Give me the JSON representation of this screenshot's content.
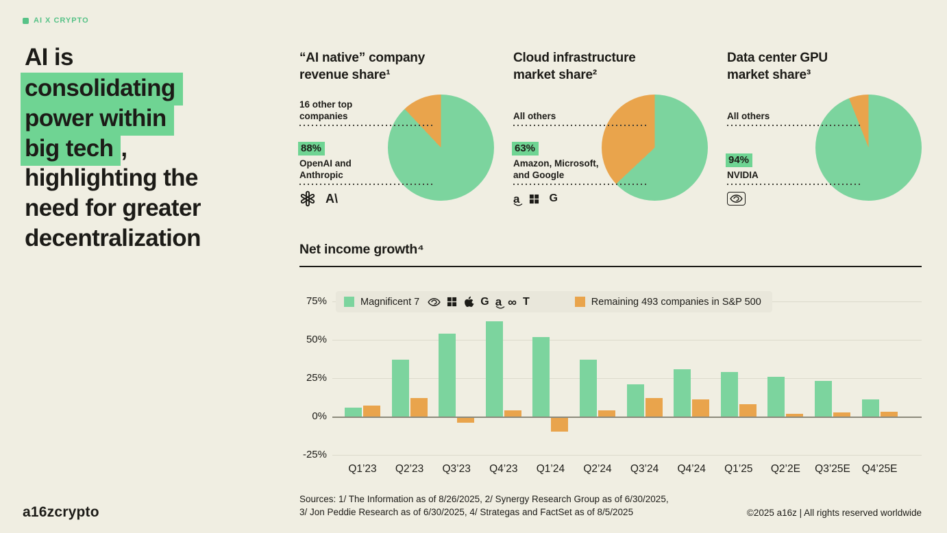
{
  "theme": {
    "background": "#F0EEE2",
    "text": "#1C1B17",
    "green": "#7CD49E",
    "highlight_green": "#6FD493",
    "badge_green": "#57C287",
    "orange": "#E9A44C",
    "legend_bg": "#E9E7DB",
    "gridline": "#DCDACC",
    "zero_line": "#8C8A7C"
  },
  "badge": {
    "label": "AI X CRYPTO"
  },
  "headline": {
    "lines": [
      {
        "text": "AI is",
        "highlight": false,
        "suffix": ""
      },
      {
        "text": "consolidating",
        "highlight": true,
        "suffix": ""
      },
      {
        "text": "power within",
        "highlight": true,
        "suffix": ""
      },
      {
        "text": "big tech",
        "highlight": true,
        "suffix": ","
      },
      {
        "text": "highlighting the",
        "highlight": false,
        "suffix": ""
      },
      {
        "text": "need for greater",
        "highlight": false,
        "suffix": ""
      },
      {
        "text": "decentralization",
        "highlight": false,
        "suffix": ""
      }
    ]
  },
  "pies": [
    {
      "title1": "“AI native” company",
      "title2": "revenue share¹",
      "top_lines": [
        "16 other top",
        "companies"
      ],
      "pct": "88%",
      "bottom_lines": [
        "OpenAI and",
        "Anthropic"
      ],
      "icons": [
        "openai",
        "anthropic"
      ]
    },
    {
      "title1": "Cloud infrastructure",
      "title2": "market share²",
      "top_lines": [
        "All others"
      ],
      "pct": "63%",
      "bottom_lines": [
        "Amazon, Microsoft,",
        "and Google"
      ],
      "icons": [
        "amazon",
        "microsoft",
        "google"
      ]
    },
    {
      "title1": "Data center GPU",
      "title2": "market share³",
      "top_lines": [
        "All others"
      ],
      "pct": "94%",
      "bottom_lines": [
        "NVIDIA"
      ],
      "icons": [
        "nvidia-badge"
      ]
    }
  ],
  "bar_section": {
    "title": "Net income growth⁴",
    "legend": [
      {
        "label": "Magnificent 7",
        "icons": [
          "nvidia",
          "microsoft",
          "apple",
          "google",
          "amazon",
          "meta",
          "tesla"
        ]
      },
      {
        "label": "Remaining 493 companies in S&P 500",
        "icons": []
      }
    ]
  },
  "footer": {
    "sources_line1": "Sources: 1/ The Information as of 8/26/2025, 2/ Synergy Research Group as of 6/30/2025,",
    "sources_line2": "3/ Jon Peddie Research as of 6/30/2025, 4/ Strategas and FactSet as of 8/5/2025",
    "wordmark": "a16zcrypto",
    "copyright": "©2025 a16z | All rights reserved worldwide"
  },
  "chart_data": [
    {
      "type": "pie",
      "title": "“AI native” company revenue share",
      "slices": [
        {
          "label": "OpenAI and Anthropic",
          "value": 88,
          "color": "#7CD49E"
        },
        {
          "label": "16 other top companies",
          "value": 12,
          "color": "#E9A44C"
        }
      ]
    },
    {
      "type": "pie",
      "title": "Cloud infrastructure market share",
      "slices": [
        {
          "label": "Amazon, Microsoft, and Google",
          "value": 63,
          "color": "#7CD49E"
        },
        {
          "label": "All others",
          "value": 37,
          "color": "#E9A44C"
        }
      ]
    },
    {
      "type": "pie",
      "title": "Data center GPU market share",
      "slices": [
        {
          "label": "NVIDIA",
          "value": 94,
          "color": "#7CD49E"
        },
        {
          "label": "All others",
          "value": 6,
          "color": "#E9A44C"
        }
      ]
    },
    {
      "type": "bar",
      "title": "Net income growth (YoY %)",
      "categories": [
        "Q1’23",
        "Q2’23",
        "Q3’23",
        "Q4’23",
        "Q1’24",
        "Q2’24",
        "Q3’24",
        "Q4’24",
        "Q1’25",
        "Q2’2E",
        "Q3’25E",
        "Q4’25E"
      ],
      "series": [
        {
          "name": "Magnificent 7",
          "color": "#7CD49E",
          "values": [
            6,
            37,
            54,
            62,
            52,
            37,
            21,
            31,
            29,
            26,
            23,
            11
          ]
        },
        {
          "name": "Remaining 493 companies in S&P 500",
          "color": "#E9A44C",
          "values": [
            7,
            12,
            -3,
            4,
            -9,
            4,
            12,
            11,
            8,
            2,
            2.5,
            3
          ]
        }
      ],
      "ylim": [
        -25,
        75
      ],
      "yticks": [
        75,
        50,
        25,
        0,
        -25
      ],
      "ytick_labels": [
        "75%",
        "50%",
        "25%",
        "0%",
        "-25%"
      ],
      "grid": true,
      "legend_position": "top"
    }
  ]
}
